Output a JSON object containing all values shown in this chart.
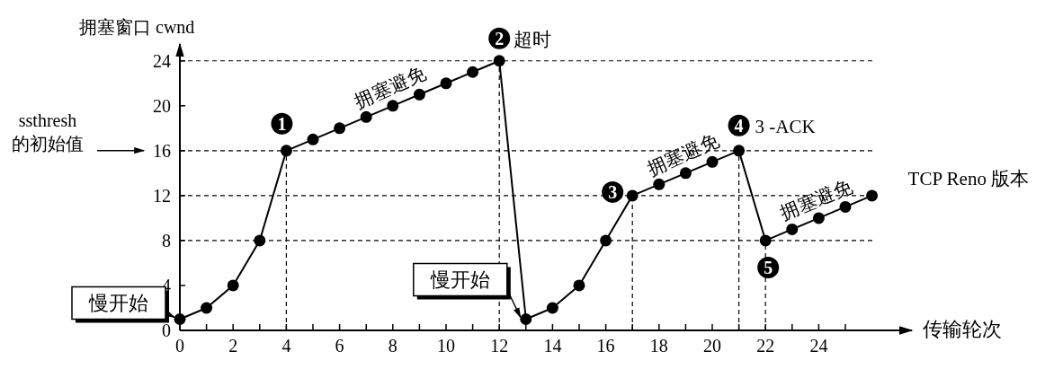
{
  "chart_data": {
    "type": "line",
    "ylabel": "拥塞窗口 cwnd",
    "xlabel": "传输轮次",
    "x": [
      0,
      1,
      2,
      3,
      4,
      5,
      6,
      7,
      8,
      9,
      10,
      11,
      12,
      13,
      14,
      15,
      16,
      17,
      18,
      19,
      20,
      21,
      22,
      23,
      24,
      25,
      26
    ],
    "series": [
      {
        "color": "#000000",
        "values": [
          1,
          2,
          4,
          8,
          16,
          17,
          18,
          19,
          20,
          21,
          22,
          23,
          24,
          1,
          2,
          4,
          8,
          12,
          13,
          14,
          15,
          16,
          8,
          9,
          10,
          11,
          12
        ]
      }
    ],
    "marker": "circle",
    "line_style": "solid",
    "xlim": [
      0,
      27.5
    ],
    "ylim": [
      0,
      25.5
    ],
    "xticks": [
      0,
      {
        "value": 1,
        "label": null
      },
      2,
      {
        "value": 3,
        "label": null
      },
      4,
      {
        "value": 5,
        "label": null
      },
      6,
      {
        "value": 7,
        "label": null
      },
      8,
      {
        "value": 9,
        "label": null
      },
      10,
      {
        "value": 11,
        "label": null
      },
      12,
      {
        "value": 13,
        "label": null
      },
      14,
      {
        "value": 15,
        "label": null
      },
      16,
      {
        "value": 17,
        "label": null
      },
      18,
      {
        "value": 19,
        "label": null
      },
      20,
      {
        "value": 21,
        "label": null
      },
      22,
      {
        "value": 23,
        "label": null
      },
      24,
      {
        "value": 25,
        "label": null
      }
    ],
    "yticks": [
      0,
      4,
      8,
      12,
      16,
      20,
      24
    ],
    "ref_lines": [
      {
        "axis": "y",
        "value": 24,
        "line_style": "dashed"
      },
      {
        "axis": "y",
        "value": 16,
        "line_style": "dashed"
      },
      {
        "axis": "y",
        "value": 12,
        "line_style": "dashed"
      },
      {
        "axis": "y",
        "value": 8,
        "line_style": "dashed"
      },
      {
        "axis": "x",
        "value": 4,
        "line_style": "dashed"
      },
      {
        "axis": "x",
        "value": 12,
        "line_style": "dashed"
      },
      {
        "axis": "x",
        "value": 17,
        "line_style": "dashed"
      },
      {
        "axis": "x",
        "value": 21,
        "line_style": "dashed"
      },
      {
        "axis": "x",
        "value": 22,
        "line_style": "dashed"
      }
    ],
    "annotations": [
      {
        "text": "慢开始",
        "x": 0,
        "y": 1
      },
      {
        "text": "1",
        "x": 4,
        "y": 16
      },
      {
        "text": "拥塞避免",
        "x": 8,
        "y": 20
      },
      {
        "text": "2",
        "x": 12,
        "y": 24
      },
      {
        "text": "超时",
        "x": 12,
        "y": 24
      },
      {
        "text": "慢开始",
        "x": 13,
        "y": 1
      },
      {
        "text": "3",
        "x": 17,
        "y": 12
      },
      {
        "text": "拥塞避免",
        "x": 19,
        "y": 14
      },
      {
        "text": "4",
        "x": 21,
        "y": 16
      },
      {
        "text": "3 -ACK",
        "x": 21,
        "y": 16
      },
      {
        "text": "5",
        "x": 22,
        "y": 8
      },
      {
        "text": "拥塞避免",
        "x": 24,
        "y": 10
      },
      {
        "text": "TCP Reno 版本",
        "x": 26,
        "y": 12
      },
      "ssthresh\n的初始值"
    ]
  }
}
